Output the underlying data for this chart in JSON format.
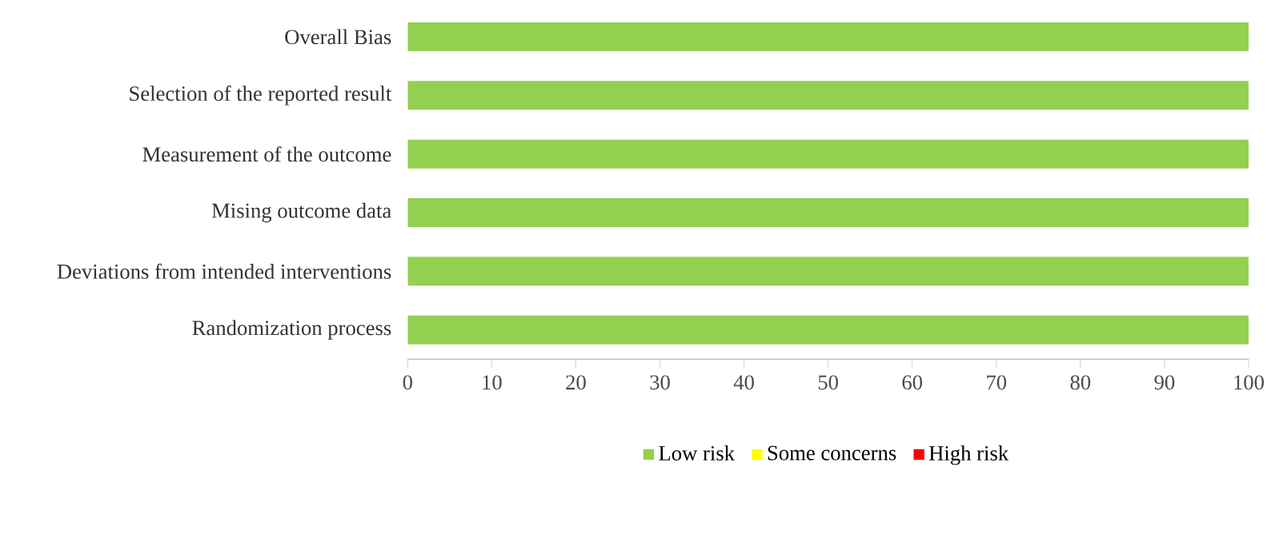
{
  "chart_data": {
    "type": "bar",
    "orientation": "horizontal",
    "categories": [
      "Overall Bias",
      "Selection of the reported result",
      "Measurement of the outcome",
      "Mising outcome data",
      "Deviations from intended interventions",
      "Randomization process"
    ],
    "series": [
      {
        "name": "Low risk",
        "color": "#92d050",
        "values": [
          100,
          100,
          100,
          100,
          100,
          100
        ]
      },
      {
        "name": "Some concerns",
        "color": "#ffff00",
        "values": [
          0,
          0,
          0,
          0,
          0,
          0
        ]
      },
      {
        "name": "High risk",
        "color": "#ff0000",
        "values": [
          0,
          0,
          0,
          0,
          0,
          0
        ]
      }
    ],
    "xlim": [
      0,
      100
    ],
    "xticks": [
      0,
      10,
      20,
      30,
      40,
      50,
      60,
      70,
      80,
      90,
      100
    ],
    "legend": "bottom",
    "grid": false
  }
}
